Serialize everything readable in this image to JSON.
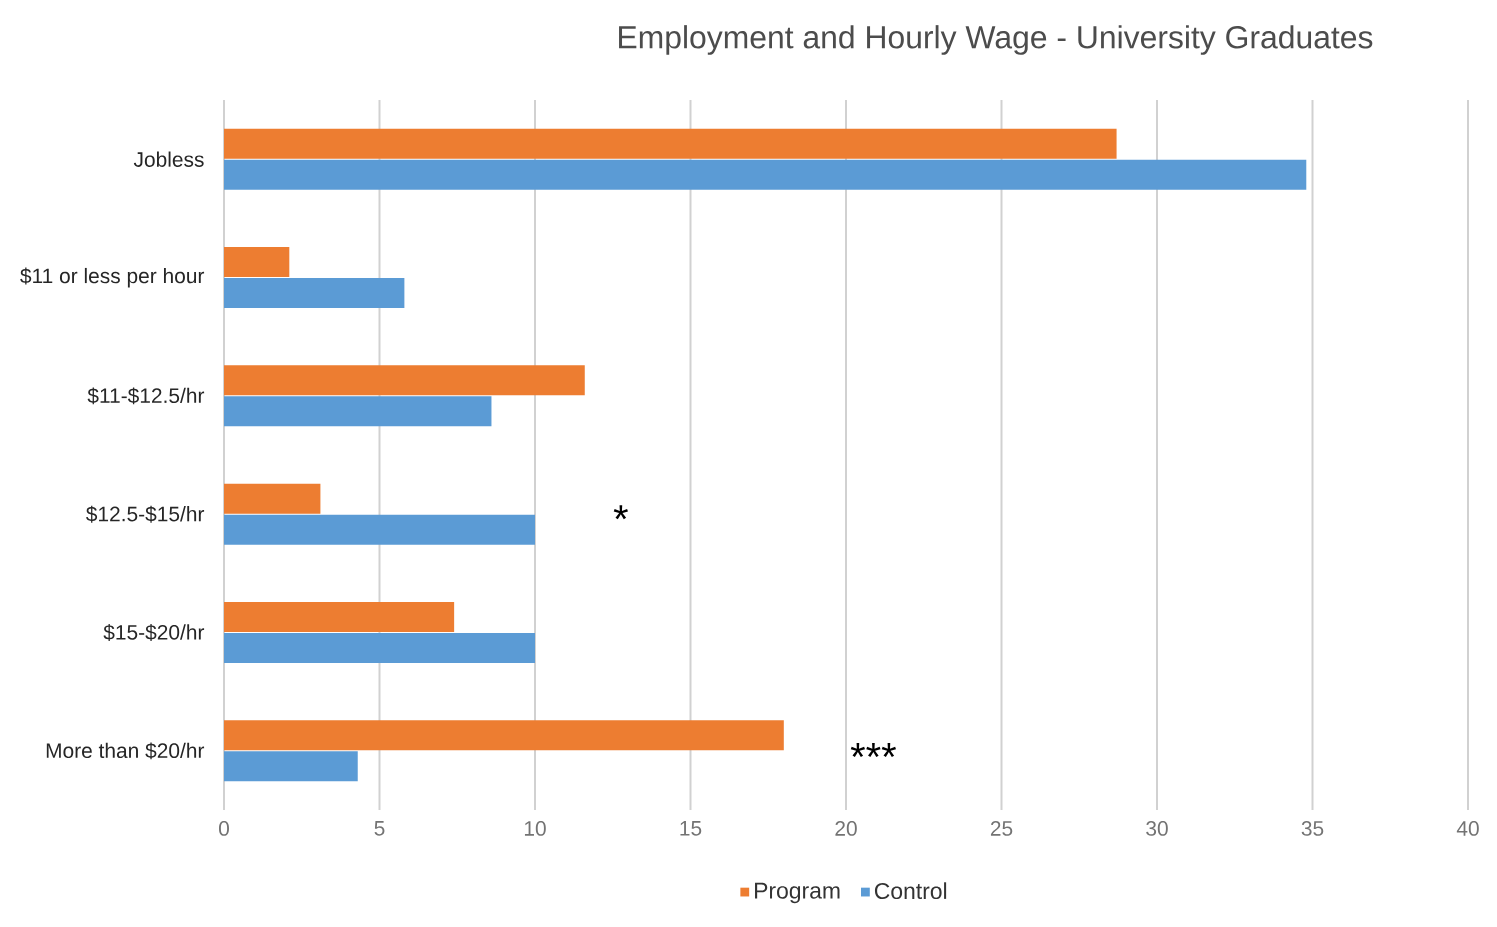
{
  "chart_data": {
    "type": "bar",
    "orientation": "horizontal",
    "title": "Employment and Hourly Wage - University Graduates",
    "categories": [
      "Jobless",
      "$11 or less per hour",
      "$11-$12.5/hr",
      "$12.5-$15/hr",
      "$15-$20/hr",
      "More than $20/hr"
    ],
    "series": [
      {
        "name": "Program",
        "color": "#ed7d31",
        "values": [
          28.7,
          2.1,
          11.6,
          3.1,
          7.4,
          18.0
        ]
      },
      {
        "name": "Control",
        "color": "#5b9bd5",
        "values": [
          34.8,
          5.8,
          8.6,
          10.0,
          10.0,
          4.3
        ]
      }
    ],
    "xlim": [
      0,
      40
    ],
    "xticks": [
      0,
      5,
      10,
      15,
      20,
      25,
      30,
      35,
      40
    ],
    "grid": "x",
    "legend": "bottom",
    "annotations": [
      "*",
      "***"
    ]
  }
}
